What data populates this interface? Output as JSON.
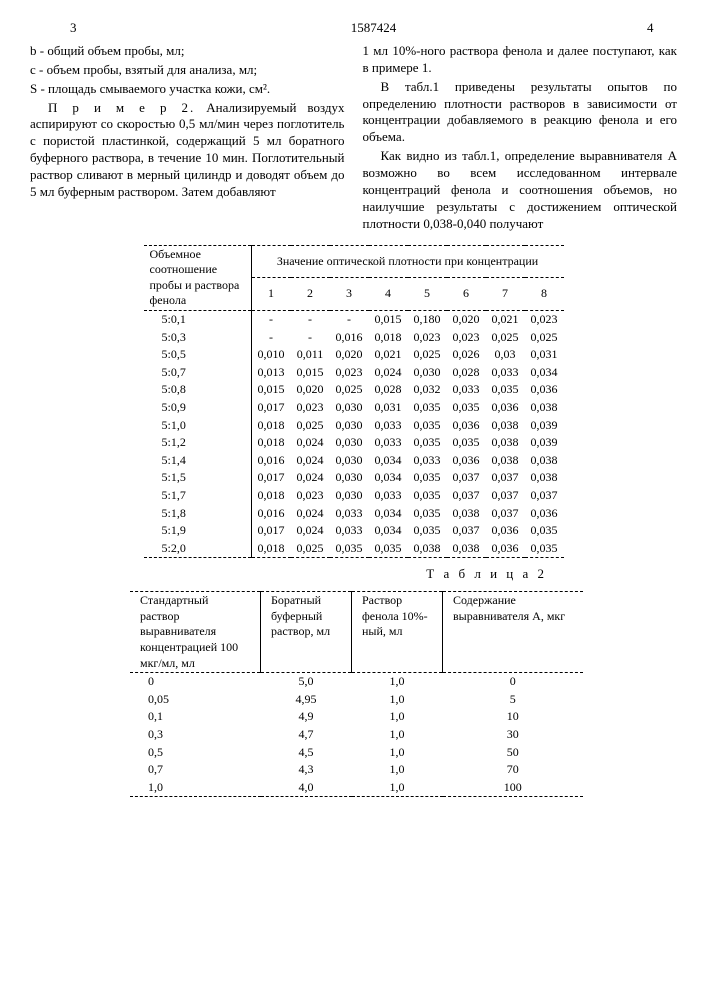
{
  "doc_number": "1587424",
  "page_left": "3",
  "page_right": "4",
  "left_col": {
    "defs": [
      "b - общий объем пробы, мл;",
      "c - объем пробы, взятый для анализа, мл;",
      "S - площадь смываемого участка кожи, см²."
    ],
    "example_label": "П р и м е р 2.",
    "example_text": "Анализируемый воздух аспирируют со скоростью 0,5 мл/мин через поглотитель с пористой пластинкой, содержащий 5 мл боратного буферного раствора, в течение 10 мин. Поглотительный раствор сливают в мерный цилиндр и доводят объем до 5 мл буферным раствором. Затем добавляют",
    "margin_5": "5",
    "margin_10": "10"
  },
  "right_col": {
    "p1": "1 мл 10%-ного раствора фенола и далее поступают, как в примере 1.",
    "p2": "В табл.1 приведены результаты опытов по определению плотности растворов в зависимости от концентрации добавляемого в реакцию фенола и его объема.",
    "p3": "Как видно из табл.1, определение выравнивателя А возможно во всем исследованном интервале концентраций фенола и соотношения объемов, но наилучшие результаты с достижением оптической плотности 0,038-0,040 получают"
  },
  "table1": {
    "header_left": "Объемное соотношение пробы и раствора фенола",
    "header_right": "Значение оптической плотности при концентрации",
    "cols": [
      "1",
      "2",
      "3",
      "4",
      "5",
      "6",
      "7",
      "8"
    ],
    "rows": [
      {
        "r": "5:0,1",
        "v": [
          "-",
          "-",
          "-",
          "0,015",
          "0,180",
          "0,020",
          "0,021",
          "0,023"
        ]
      },
      {
        "r": "5:0,3",
        "v": [
          "-",
          "-",
          "0,016",
          "0,018",
          "0,023",
          "0,023",
          "0,025",
          "0,025"
        ]
      },
      {
        "r": "5:0,5",
        "v": [
          "0,010",
          "0,011",
          "0,020",
          "0,021",
          "0,025",
          "0,026",
          "0,03",
          "0,031"
        ]
      },
      {
        "r": "5:0,7",
        "v": [
          "0,013",
          "0,015",
          "0,023",
          "0,024",
          "0,030",
          "0,028",
          "0,033",
          "0,034"
        ]
      },
      {
        "r": "5:0,8",
        "v": [
          "0,015",
          "0,020",
          "0,025",
          "0,028",
          "0,032",
          "0,033",
          "0,035",
          "0,036"
        ]
      },
      {
        "r": "5:0,9",
        "v": [
          "0,017",
          "0,023",
          "0,030",
          "0,031",
          "0,035",
          "0,035",
          "0,036",
          "0,038"
        ]
      },
      {
        "r": "5:1,0",
        "v": [
          "0,018",
          "0,025",
          "0,030",
          "0,033",
          "0,035",
          "0,036",
          "0,038",
          "0,039"
        ]
      },
      {
        "r": "5:1,2",
        "v": [
          "0,018",
          "0,024",
          "0,030",
          "0,033",
          "0,035",
          "0,035",
          "0,038",
          "0,039"
        ]
      },
      {
        "r": "5:1,4",
        "v": [
          "0,016",
          "0,024",
          "0,030",
          "0,034",
          "0,033",
          "0,036",
          "0,038",
          "0,038"
        ]
      },
      {
        "r": "5:1,5",
        "v": [
          "0,017",
          "0,024",
          "0,030",
          "0,034",
          "0,035",
          "0,037",
          "0,037",
          "0,038"
        ]
      },
      {
        "r": "5:1,7",
        "v": [
          "0,018",
          "0,023",
          "0,030",
          "0,033",
          "0,035",
          "0,037",
          "0,037",
          "0,037"
        ]
      },
      {
        "r": "5:1,8",
        "v": [
          "0,016",
          "0,024",
          "0,033",
          "0,034",
          "0,035",
          "0,038",
          "0,037",
          "0,036"
        ]
      },
      {
        "r": "5:1,9",
        "v": [
          "0,017",
          "0,024",
          "0,033",
          "0,034",
          "0,035",
          "0,037",
          "0,036",
          "0,035"
        ]
      },
      {
        "r": "5:2,0",
        "v": [
          "0,018",
          "0,025",
          "0,035",
          "0,035",
          "0,038",
          "0,038",
          "0,036",
          "0,035"
        ]
      }
    ]
  },
  "table2": {
    "caption": "Т а б л и ц а 2",
    "headers": [
      "Стандартный раствор выравнивателя концентрацией 100 мкг/мл, мл",
      "Боратный буферный раствор, мл",
      "Раствор фенола 10%-ный, мл",
      "Содержание выравнивателя А, мкг"
    ],
    "rows": [
      [
        "0",
        "5,0",
        "1,0",
        "0"
      ],
      [
        "0,05",
        "4,95",
        "1,0",
        "5"
      ],
      [
        "0,1",
        "4,9",
        "1,0",
        "10"
      ],
      [
        "0,3",
        "4,7",
        "1,0",
        "30"
      ],
      [
        "0,5",
        "4,5",
        "1,0",
        "50"
      ],
      [
        "0,7",
        "4,3",
        "1,0",
        "70"
      ],
      [
        "1,0",
        "4,0",
        "1,0",
        "100"
      ]
    ]
  }
}
